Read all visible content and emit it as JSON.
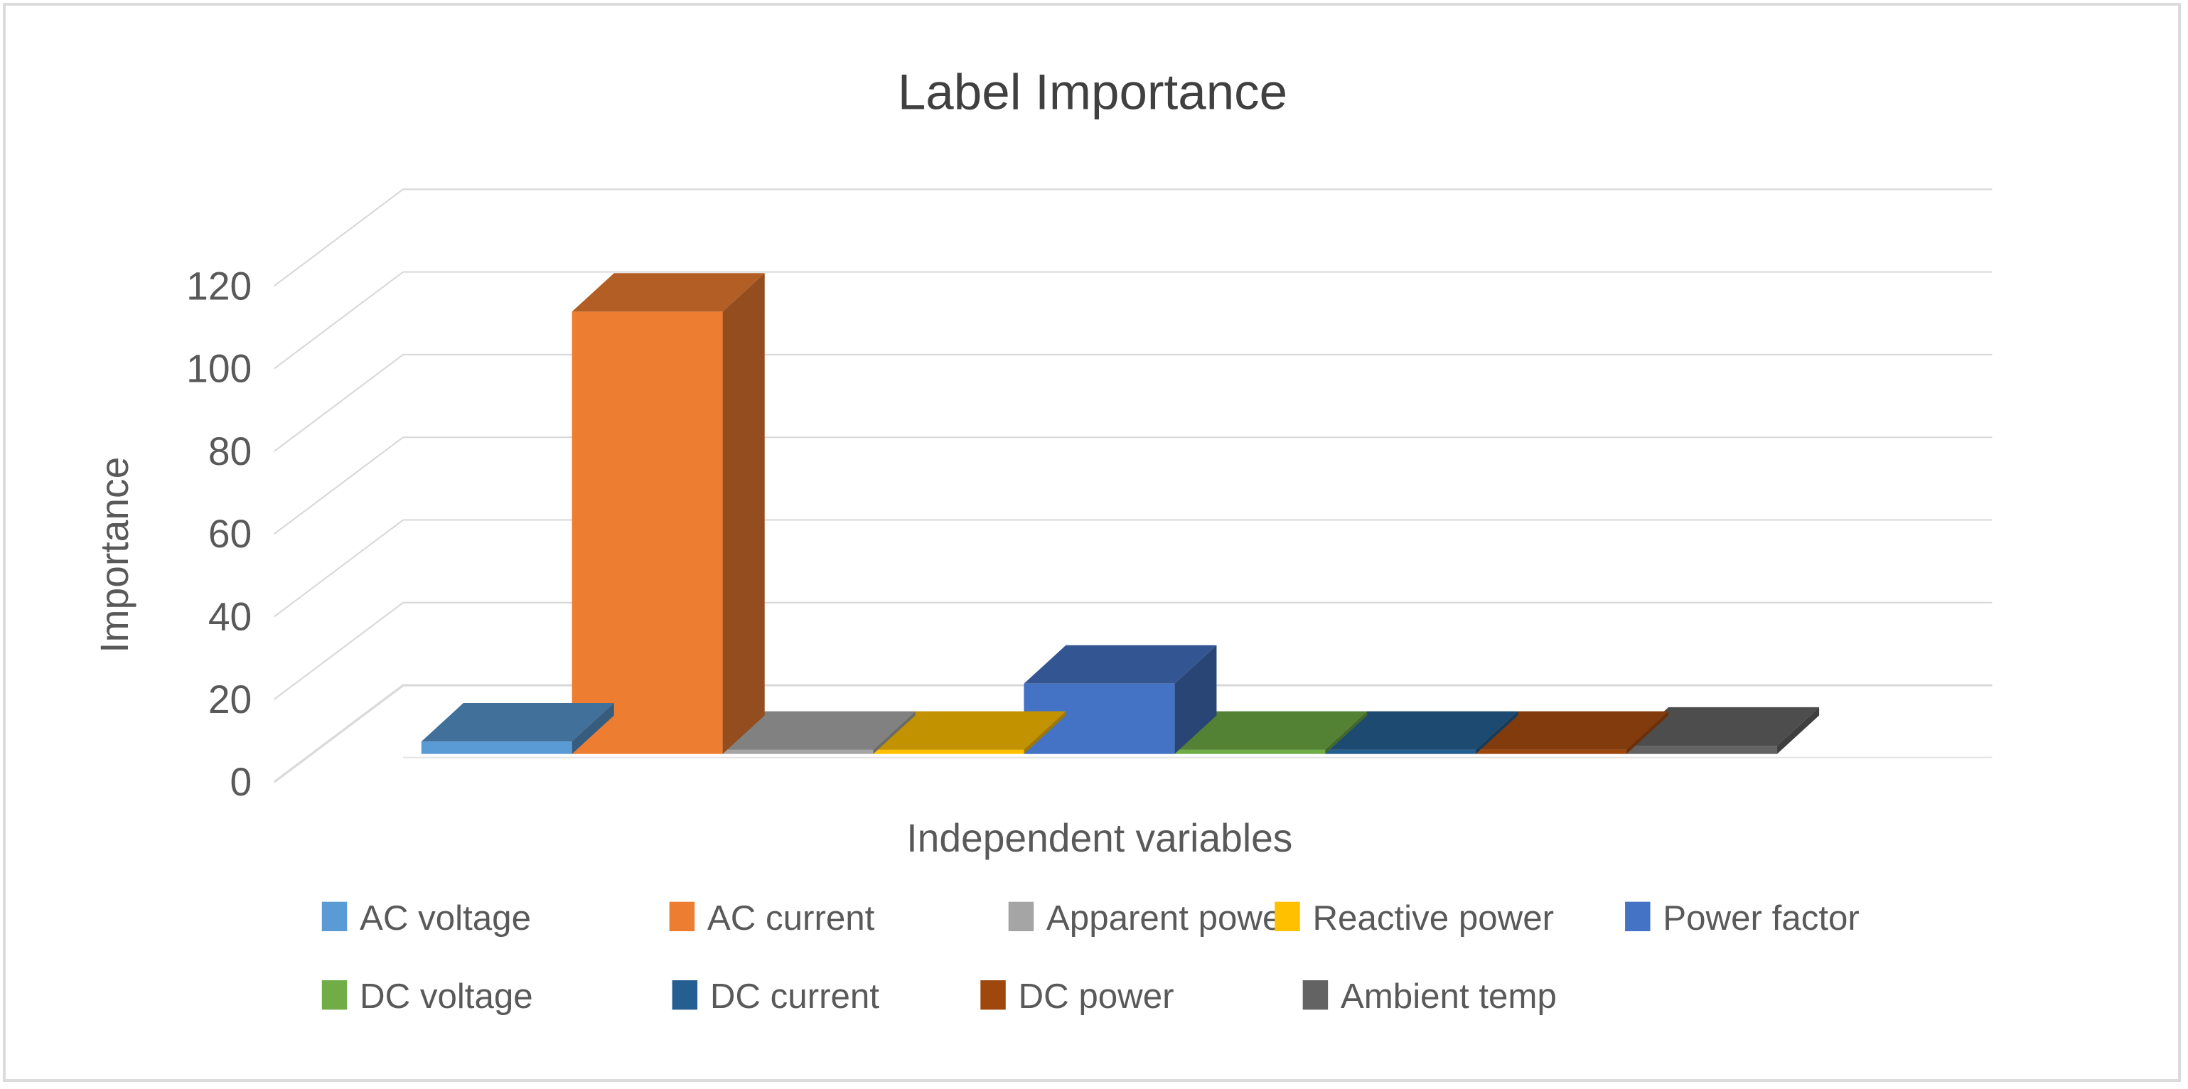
{
  "window": {
    "background": "#FFFFFF",
    "border_color": "#DBDBDB"
  },
  "chart_data": {
    "type": "bar",
    "projection": "3d-oblique",
    "title": "Label Importance",
    "xlabel": "Independent variables",
    "ylabel": "Importance",
    "ylim": [
      0,
      120
    ],
    "yticks": [
      0,
      20,
      40,
      60,
      80,
      100,
      120
    ],
    "ytick_labels": [
      "0",
      "20",
      "40",
      "60",
      "80",
      "100",
      "120"
    ],
    "grid": true,
    "legend_position": "bottom",
    "categories": [
      "AC voltage",
      "AC current",
      "Apparent power",
      "Reactive power",
      "Power factor",
      "DC voltage",
      "DC current",
      "DC power",
      "Ambient temp"
    ],
    "series": [
      {
        "name": "AC voltage",
        "value": 3,
        "color": "#5B9BD5",
        "color_top": "#41709A",
        "color_side": "#365D80"
      },
      {
        "name": "AC current",
        "value": 107,
        "color": "#ED7D31",
        "color_top": "#B25E25",
        "color_side": "#934D1E"
      },
      {
        "name": "Apparent power",
        "value": 1,
        "color": "#A5A5A5",
        "color_top": "#818181",
        "color_side": "#6B6B6B"
      },
      {
        "name": "Reactive power",
        "value": 1,
        "color": "#FFC000",
        "color_top": "#C29200",
        "color_side": "#9E7700"
      },
      {
        "name": "Power factor",
        "value": 17,
        "color": "#4472C4",
        "color_top": "#335693",
        "color_side": "#294576"
      },
      {
        "name": "DC voltage",
        "value": 1,
        "color": "#70AD47",
        "color_top": "#548235",
        "color_side": "#43682B"
      },
      {
        "name": "DC current",
        "value": 1,
        "color": "#255E91",
        "color_top": "#1D4A71",
        "color_side": "#173B5A"
      },
      {
        "name": "DC power",
        "value": 1,
        "color": "#9E480E",
        "color_top": "#823B0C",
        "color_side": "#6B300A"
      },
      {
        "name": "Ambient temp",
        "value": 2,
        "color": "#636363",
        "color_top": "#4D4D4D",
        "color_side": "#3F3F3F"
      }
    ],
    "legend_rows": [
      [
        0,
        1,
        2,
        3,
        4
      ],
      [
        5,
        6,
        7,
        8
      ]
    ],
    "title_color": "#404040",
    "text_color": "#595959",
    "grid_color": "#D9D9D9"
  }
}
